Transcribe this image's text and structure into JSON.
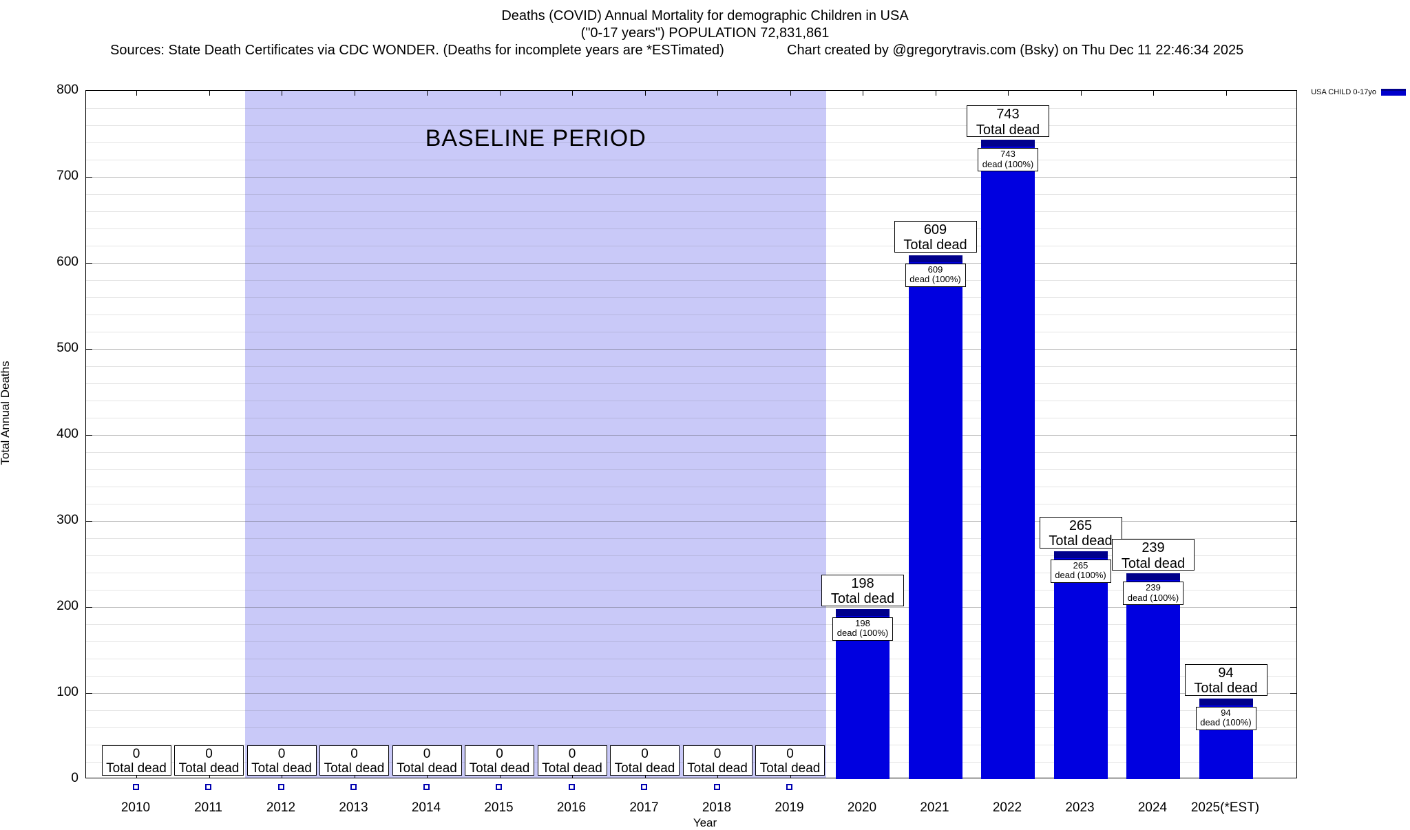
{
  "header": {
    "title": "Deaths (COVID) Annual Mortality for demographic Children in USA",
    "subtitle": "(\"0-17 years\") POPULATION 72,831,861",
    "sources": "Sources: State Death Certificates via CDC WONDER. (Deaths for incomplete years are *ESTimated)",
    "credit": "Chart created by @gregorytravis.com (Bsky) on Thu Dec 11 22:46:34 2025"
  },
  "legend": {
    "label": "USA CHILD 0-17yo",
    "color": "#0000cc"
  },
  "chart_data": {
    "type": "bar",
    "title": "Deaths (COVID) Annual Mortality for demographic Children in USA",
    "xlabel": "Year",
    "ylabel": "Total Annual Deaths",
    "ylim": [
      0,
      800
    ],
    "ytick_interval": 100,
    "minor_ytick_interval": 20,
    "grid": true,
    "legend_position": "top-right",
    "categories": [
      "2010",
      "2011",
      "2012",
      "2013",
      "2014",
      "2015",
      "2016",
      "2017",
      "2018",
      "2019",
      "2020",
      "2021",
      "2022",
      "2023",
      "2024",
      "2025(*EST)"
    ],
    "values": [
      0,
      0,
      0,
      0,
      0,
      0,
      0,
      0,
      0,
      0,
      198,
      609,
      743,
      265,
      239,
      94
    ],
    "bar_top_label_line2": "Total dead",
    "inner_label_line2": "dead (100%)",
    "baseline_region": {
      "label": "BASELINE PERIOD",
      "from_category": "2012",
      "to_category": "2019",
      "color": "#c9c9f8"
    },
    "colors": {
      "bar": "#0000e0",
      "bar_cap": "#00008b"
    }
  }
}
